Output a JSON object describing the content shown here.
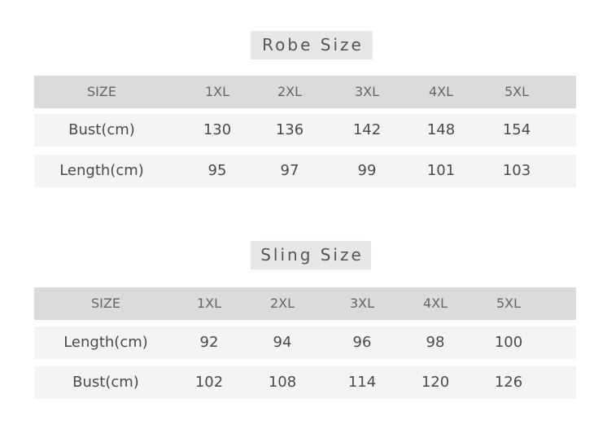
{
  "robe": {
    "title": "Robe Size",
    "header": [
      "SIZE",
      "1XL",
      "2XL",
      "3XL",
      "4XL",
      "5XL"
    ],
    "rows": [
      [
        "Bust(cm)",
        "130",
        "136",
        "142",
        "148",
        "154"
      ],
      [
        "Length(cm)",
        "95",
        "97",
        "99",
        "101",
        "103"
      ]
    ]
  },
  "sling": {
    "title": "Sling Size",
    "header": [
      "SIZE",
      "1XL",
      "2XL",
      "3XL",
      "4XL",
      "5XL"
    ],
    "rows": [
      [
        "Length(cm)",
        "92",
        "94",
        "96",
        "98",
        "100"
      ],
      [
        "Bust(cm)",
        "102",
        "108",
        "114",
        "120",
        "126"
      ]
    ]
  }
}
